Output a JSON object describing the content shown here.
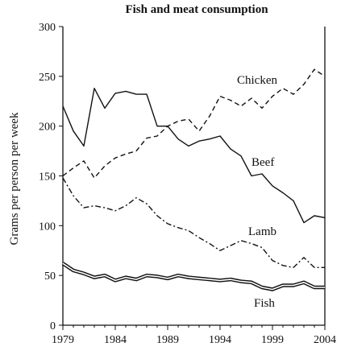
{
  "chart_data": {
    "type": "line",
    "title": "Fish and meat consumption",
    "xlabel": "",
    "ylabel": "Grams per person per week",
    "xlim": [
      1979,
      2004
    ],
    "ylim": [
      0,
      300
    ],
    "x_ticks": [
      1979,
      1984,
      1989,
      1994,
      1999,
      2004
    ],
    "y_ticks": [
      0,
      50,
      100,
      150,
      200,
      250,
      300
    ],
    "grid": false,
    "legend": "inline labels",
    "series": [
      {
        "name": "Chicken",
        "style": "dashed",
        "color": "#111111",
        "x": [
          1979,
          1980,
          1981,
          1982,
          1983,
          1984,
          1985,
          1986,
          1987,
          1988,
          1989,
          1990,
          1991,
          1992,
          1993,
          1994,
          1995,
          1996,
          1997,
          1998,
          1999,
          2000,
          2001,
          2002,
          2003,
          2004
        ],
        "values": [
          150,
          158,
          165,
          148,
          160,
          168,
          172,
          175,
          188,
          190,
          200,
          205,
          207,
          195,
          210,
          230,
          226,
          220,
          228,
          218,
          230,
          238,
          232,
          242,
          257,
          250
        ]
      },
      {
        "name": "Beef",
        "style": "solid",
        "color": "#111111",
        "x": [
          1979,
          1980,
          1981,
          1982,
          1983,
          1984,
          1985,
          1986,
          1987,
          1988,
          1989,
          1990,
          1991,
          1992,
          1993,
          1994,
          1995,
          1996,
          1997,
          1998,
          1999,
          2000,
          2001,
          2002,
          2003,
          2004
        ],
        "values": [
          220,
          195,
          180,
          238,
          218,
          233,
          235,
          232,
          232,
          200,
          200,
          187,
          180,
          185,
          187,
          190,
          177,
          170,
          150,
          152,
          140,
          133,
          125,
          103,
          110,
          108
        ]
      },
      {
        "name": "Lamb",
        "style": "dashdot",
        "color": "#111111",
        "x": [
          1979,
          1980,
          1981,
          1982,
          1983,
          1984,
          1985,
          1986,
          1987,
          1988,
          1989,
          1990,
          1991,
          1992,
          1993,
          1994,
          1995,
          1996,
          1997,
          1998,
          1999,
          2000,
          2001,
          2002,
          2003,
          2004
        ],
        "values": [
          148,
          130,
          118,
          120,
          118,
          115,
          120,
          128,
          122,
          110,
          102,
          98,
          95,
          88,
          82,
          75,
          80,
          85,
          82,
          78,
          65,
          60,
          58,
          68,
          58,
          58
        ]
      },
      {
        "name": "Fish",
        "style": "double",
        "color": "#111111",
        "x": [
          1979,
          1980,
          1981,
          1982,
          1983,
          1984,
          1985,
          1986,
          1987,
          1988,
          1989,
          1990,
          1991,
          1992,
          1993,
          1994,
          1995,
          1996,
          1997,
          1998,
          1999,
          2000,
          2001,
          2002,
          2003,
          2004
        ],
        "values": [
          62,
          55,
          52,
          48,
          50,
          45,
          48,
          46,
          50,
          49,
          47,
          50,
          48,
          47,
          46,
          45,
          46,
          44,
          43,
          38,
          36,
          40,
          40,
          43,
          38,
          38
        ]
      }
    ]
  }
}
